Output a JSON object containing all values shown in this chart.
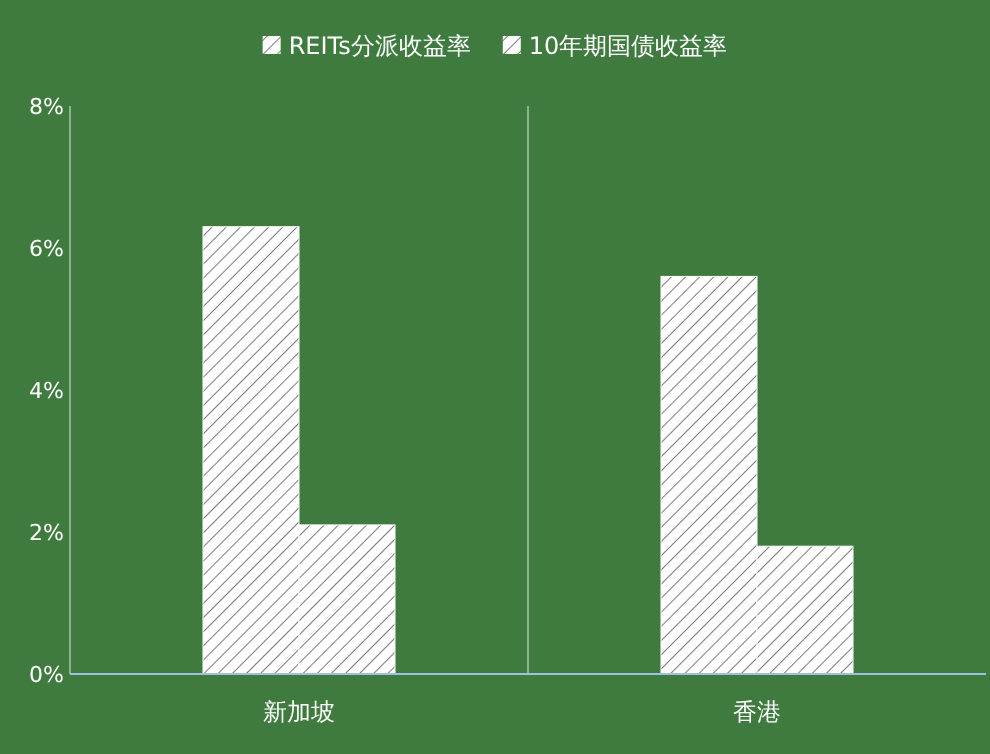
{
  "chart_data": {
    "type": "bar",
    "categories": [
      "新加坡",
      "香港"
    ],
    "series": [
      {
        "name": "REITs分派收益率",
        "color": "#ffffff",
        "values": [
          6.3,
          5.6
        ]
      },
      {
        "name": "10年期国债收益率",
        "color": "#ffffff",
        "values": [
          2.1,
          1.8
        ]
      }
    ],
    "ylim": [
      0,
      8
    ],
    "yticks": [
      {
        "value": 0,
        "label": "0%"
      },
      {
        "value": 2,
        "label": "2%"
      },
      {
        "value": 4,
        "label": "4%"
      },
      {
        "value": 6,
        "label": "6%"
      },
      {
        "value": 8,
        "label": "8%"
      }
    ],
    "legend": "top",
    "grid": false
  }
}
